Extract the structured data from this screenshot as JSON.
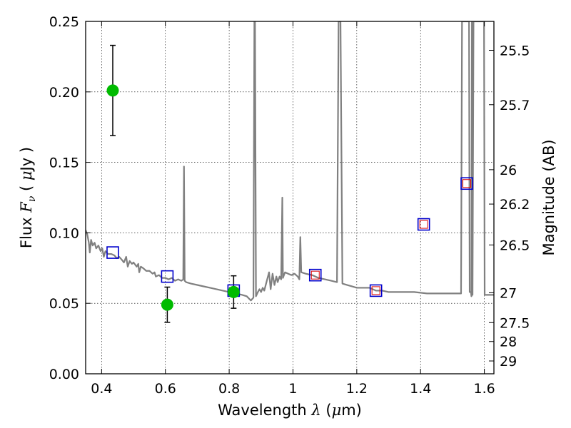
{
  "chart_data": {
    "type": "scatter",
    "title": "",
    "xlabel": "Wavelength  λ (μm)",
    "ylabel": "Flux  Fν  ( μJy )",
    "ylabel_right": "Magnitude (AB)",
    "xlim": [
      0.35,
      1.63
    ],
    "ylim": [
      0.0,
      0.25
    ],
    "grid": true,
    "x_ticks": [
      0.4,
      0.6,
      0.8,
      1.0,
      1.2,
      1.4,
      1.6
    ],
    "x_tick_labels": [
      "0.4",
      "0.6",
      "0.8",
      "1",
      "1.2",
      "1.4",
      "1.6"
    ],
    "y_ticks": [
      0.0,
      0.05,
      0.1,
      0.15,
      0.2,
      0.25
    ],
    "y_tick_labels": [
      "0.00",
      "0.05",
      "0.10",
      "0.15",
      "0.20",
      "0.25"
    ],
    "right_ticks": [
      {
        "label": "25.5",
        "flux": 0.2295
      },
      {
        "label": "25.7",
        "flux": 0.1909
      },
      {
        "label": "26",
        "flux": 0.1448
      },
      {
        "label": "26.2",
        "flux": 0.1204
      },
      {
        "label": "26.5",
        "flux": 0.0914
      },
      {
        "label": "27",
        "flux": 0.0575
      },
      {
        "label": "27.5",
        "flux": 0.0363
      },
      {
        "label": "28",
        "flux": 0.0229
      },
      {
        "label": "29",
        "flux": 0.0091
      }
    ],
    "observed": {
      "color": "#00bb00",
      "points": [
        {
          "x": 0.435,
          "y": 0.201,
          "err": 0.032
        },
        {
          "x": 0.606,
          "y": 0.049,
          "err": 0.0125
        },
        {
          "x": 0.814,
          "y": 0.058,
          "err": 0.0115
        }
      ]
    },
    "model_photometry": {
      "outer_color": "#0000cc",
      "inner_color": "#dd0000",
      "points": [
        {
          "x": 0.435,
          "y": 0.086,
          "inner": false
        },
        {
          "x": 0.606,
          "y": 0.069,
          "inner": false
        },
        {
          "x": 0.814,
          "y": 0.059,
          "inner": false
        },
        {
          "x": 1.07,
          "y": 0.07,
          "inner": true
        },
        {
          "x": 1.26,
          "y": 0.059,
          "inner": true
        },
        {
          "x": 1.41,
          "y": 0.106,
          "inner": true
        },
        {
          "x": 1.545,
          "y": 0.135,
          "inner": true
        }
      ]
    },
    "spectrum": {
      "color": "#808080",
      "points": [
        [
          0.35,
          0.102
        ],
        [
          0.355,
          0.099
        ],
        [
          0.36,
          0.093
        ],
        [
          0.363,
          0.086
        ],
        [
          0.367,
          0.095
        ],
        [
          0.372,
          0.091
        ],
        [
          0.378,
          0.093
        ],
        [
          0.383,
          0.089
        ],
        [
          0.39,
          0.091
        ],
        [
          0.397,
          0.087
        ],
        [
          0.402,
          0.089
        ],
        [
          0.407,
          0.083
        ],
        [
          0.412,
          0.087
        ],
        [
          0.42,
          0.085
        ],
        [
          0.43,
          0.085
        ],
        [
          0.44,
          0.084
        ],
        [
          0.448,
          0.082
        ],
        [
          0.455,
          0.083
        ],
        [
          0.463,
          0.081
        ],
        [
          0.47,
          0.079
        ],
        [
          0.477,
          0.083
        ],
        [
          0.482,
          0.076
        ],
        [
          0.488,
          0.08
        ],
        [
          0.495,
          0.078
        ],
        [
          0.5,
          0.079
        ],
        [
          0.51,
          0.076
        ],
        [
          0.515,
          0.078
        ],
        [
          0.518,
          0.072
        ],
        [
          0.523,
          0.076
        ],
        [
          0.53,
          0.075
        ],
        [
          0.54,
          0.073
        ],
        [
          0.55,
          0.073
        ],
        [
          0.56,
          0.071
        ],
        [
          0.566,
          0.072
        ],
        [
          0.57,
          0.069
        ],
        [
          0.58,
          0.07
        ],
        [
          0.59,
          0.068
        ],
        [
          0.6,
          0.068
        ],
        [
          0.61,
          0.067
        ],
        [
          0.62,
          0.068
        ],
        [
          0.63,
          0.066
        ],
        [
          0.64,
          0.067
        ],
        [
          0.65,
          0.066
        ],
        [
          0.656,
          0.067
        ],
        [
          0.6583,
          0.147
        ],
        [
          0.6605,
          0.066
        ],
        [
          0.665,
          0.065
        ],
        [
          0.68,
          0.064
        ],
        [
          0.7,
          0.063
        ],
        [
          0.72,
          0.062
        ],
        [
          0.74,
          0.061
        ],
        [
          0.76,
          0.06
        ],
        [
          0.78,
          0.059
        ],
        [
          0.8,
          0.058
        ],
        [
          0.82,
          0.057
        ],
        [
          0.84,
          0.056
        ],
        [
          0.855,
          0.055
        ],
        [
          0.868,
          0.052
        ],
        [
          0.876,
          0.054
        ],
        [
          0.879,
          0.25
        ],
        [
          0.881,
          0.25
        ],
        [
          0.884,
          0.055
        ],
        [
          0.89,
          0.058
        ],
        [
          0.895,
          0.06
        ],
        [
          0.9,
          0.058
        ],
        [
          0.905,
          0.061
        ],
        [
          0.91,
          0.059
        ],
        [
          0.918,
          0.066
        ],
        [
          0.925,
          0.072
        ],
        [
          0.93,
          0.06
        ],
        [
          0.936,
          0.071
        ],
        [
          0.942,
          0.063
        ],
        [
          0.948,
          0.069
        ],
        [
          0.952,
          0.065
        ],
        [
          0.958,
          0.069
        ],
        [
          0.963,
          0.067
        ],
        [
          0.9666,
          0.125
        ],
        [
          0.9685,
          0.068
        ],
        [
          0.975,
          0.072
        ],
        [
          0.985,
          0.071
        ],
        [
          0.995,
          0.07
        ],
        [
          1.005,
          0.071
        ],
        [
          1.015,
          0.069
        ],
        [
          1.02,
          0.067
        ],
        [
          1.023,
          0.097
        ],
        [
          1.026,
          0.072
        ],
        [
          1.04,
          0.071
        ],
        [
          1.06,
          0.07
        ],
        [
          1.08,
          0.068
        ],
        [
          1.1,
          0.067
        ],
        [
          1.12,
          0.066
        ],
        [
          1.138,
          0.065
        ],
        [
          1.143,
          0.25
        ],
        [
          1.149,
          0.25
        ],
        [
          1.155,
          0.064
        ],
        [
          1.17,
          0.063
        ],
        [
          1.185,
          0.062
        ],
        [
          1.2,
          0.061
        ],
        [
          1.22,
          0.061
        ],
        [
          1.24,
          0.061
        ],
        [
          1.26,
          0.059
        ],
        [
          1.28,
          0.059
        ],
        [
          1.3,
          0.058
        ],
        [
          1.34,
          0.058
        ],
        [
          1.38,
          0.058
        ],
        [
          1.42,
          0.057
        ],
        [
          1.46,
          0.057
        ],
        [
          1.5,
          0.057
        ],
        [
          1.527,
          0.057
        ],
        [
          1.53,
          0.25
        ],
        [
          1.552,
          0.25
        ],
        [
          1.554,
          0.058
        ],
        [
          1.558,
          0.058
        ],
        [
          1.5595,
          0.055
        ],
        [
          1.561,
          0.25
        ],
        [
          1.563,
          0.056
        ],
        [
          1.566,
          0.25
        ],
        [
          1.58,
          0.25
        ],
        [
          1.592,
          0.25
        ],
        [
          1.599,
          0.25
        ],
        [
          1.601,
          0.056
        ],
        [
          1.63,
          0.056
        ]
      ]
    }
  }
}
